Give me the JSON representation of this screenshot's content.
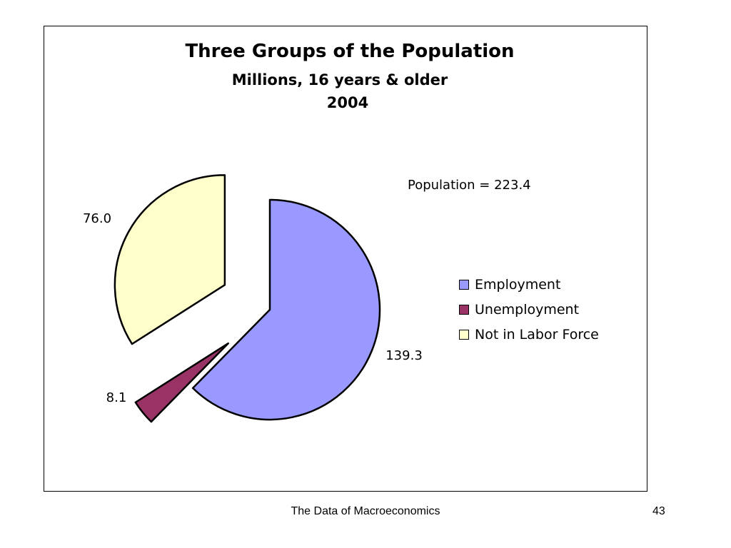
{
  "chart_data": {
    "type": "pie",
    "title": "Three Groups of the Population",
    "subtitle": "Millions, 16 years & older",
    "period": "2004",
    "annotation": "Population = 223.4",
    "labels": [
      "Employment",
      "Unemployment",
      "Not in Labor Force"
    ],
    "values": [
      139.3,
      8.1,
      76.0
    ],
    "value_labels": [
      "139.3",
      "8.1",
      "76.0"
    ],
    "colors": [
      "#9999ff",
      "#993366",
      "#ffffcc"
    ],
    "legend_placement": "right",
    "exploded": true
  },
  "footer": {
    "text": "The Data of Macroeconomics",
    "page_number": "43"
  }
}
